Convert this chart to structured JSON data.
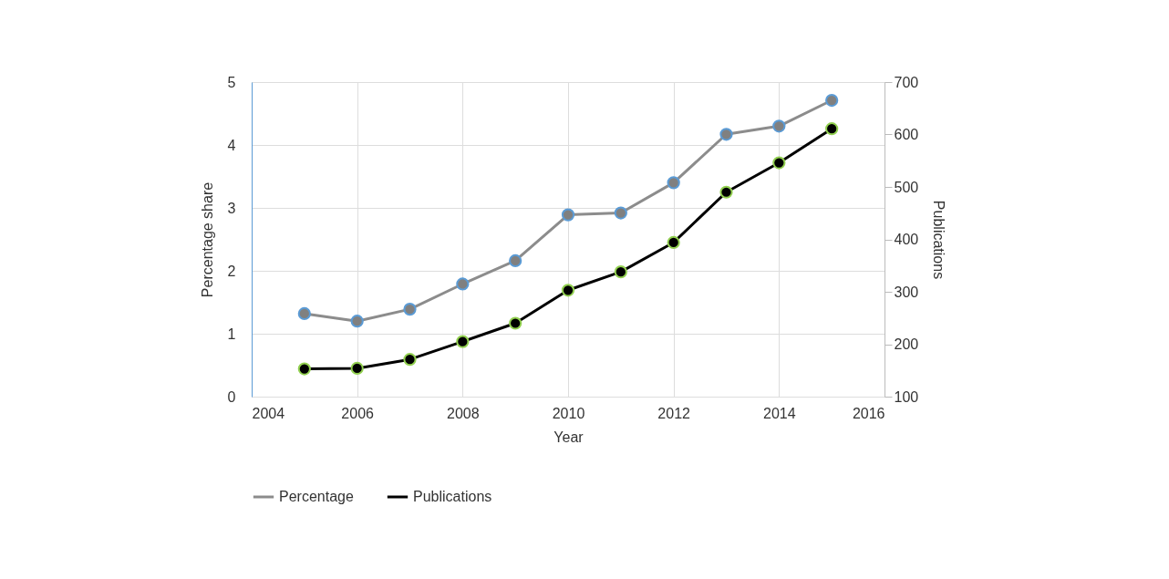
{
  "chart_data": {
    "type": "line",
    "xlabel": "Year",
    "ylabel": "Percentage share",
    "y2label": "Publications",
    "x": [
      2005,
      2006,
      2007,
      2008,
      2009,
      2010,
      2011,
      2012,
      2013,
      2014,
      2015
    ],
    "xlim": [
      2004,
      2016
    ],
    "xticks": [
      2004,
      2006,
      2008,
      2010,
      2012,
      2014,
      2016
    ],
    "ylim": [
      0,
      5
    ],
    "yticks": [
      0,
      1,
      2,
      3,
      4,
      5
    ],
    "y2lim": [
      100,
      700
    ],
    "y2ticks": [
      100,
      200,
      300,
      400,
      500,
      600,
      700
    ],
    "series": [
      {
        "name": "Percentage",
        "color": "#8c8c8c",
        "values": [
          1.32,
          1.2,
          1.39,
          1.79,
          2.16,
          2.89,
          2.92,
          3.4,
          4.17,
          4.3,
          4.71
        ]
      },
      {
        "name": "Publications",
        "color": "#000000",
        "axis": "y2",
        "values": [
          153,
          154,
          171,
          205,
          240,
          303,
          338,
          394,
          490,
          546,
          611
        ]
      }
    ],
    "grid": true,
    "legend": "bottom",
    "marker": "circle",
    "line_style": "solid"
  }
}
